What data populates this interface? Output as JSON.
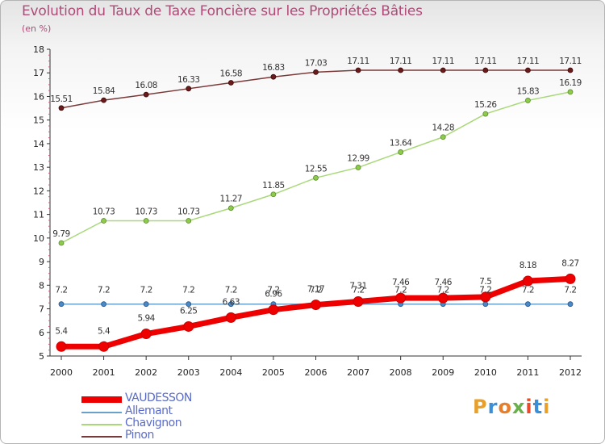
{
  "header": {
    "title": "Evolution du Taux de Taxe Foncière sur les Propriétés Bâties",
    "subtitle": "(en %)"
  },
  "logo": {
    "text": "Proxiti",
    "colors": [
      "#e8a02a",
      "#3a8fd8",
      "#e87e2a",
      "#6ab04c",
      "#e84a2a",
      "#3a8fd8",
      "#e8a02a"
    ]
  },
  "chart_data": {
    "type": "line",
    "x": [
      2000,
      2001,
      2002,
      2003,
      2004,
      2005,
      2006,
      2007,
      2008,
      2009,
      2010,
      2011,
      2012
    ],
    "ylim": [
      5,
      18
    ],
    "yticks": [
      5,
      6,
      7,
      8,
      9,
      10,
      11,
      12,
      13,
      14,
      15,
      16,
      17,
      18
    ],
    "grid": false,
    "legend_position": "bottom-left",
    "series": [
      {
        "name": "VAUDESSON",
        "values": [
          5.4,
          5.4,
          5.94,
          6.25,
          6.63,
          6.96,
          7.17,
          7.31,
          7.46,
          7.46,
          7.5,
          8.18,
          8.27
        ],
        "labels": [
          "5.4",
          "5.4",
          "5.94",
          "6.25",
          "6.63",
          "6.96",
          "7.17",
          "7.31",
          "7.46",
          "7.46",
          "7.5",
          "8.18",
          "8.27"
        ],
        "color": "#ee0000"
      },
      {
        "name": "Allemant",
        "values": [
          7.2,
          7.2,
          7.2,
          7.2,
          7.2,
          7.2,
          7.2,
          7.2,
          7.2,
          7.2,
          7.2,
          7.2,
          7.2
        ],
        "labels": [
          "7.2",
          "7.2",
          "7.2",
          "7.2",
          "7.2",
          "7.2",
          "7.2",
          "7.2",
          "7.2",
          "7.2",
          "7.2",
          "7.2",
          "7.2"
        ],
        "color": "#6aa0cc"
      },
      {
        "name": "Chavignon",
        "values": [
          9.79,
          10.73,
          10.73,
          10.73,
          11.27,
          11.85,
          12.55,
          12.99,
          13.64,
          14.28,
          15.26,
          15.83,
          16.19
        ],
        "labels": [
          "9.79",
          "10.73",
          "10.73",
          "10.73",
          "11.27",
          "11.85",
          "12.55",
          "12.99",
          "13.64",
          "14.28",
          "15.26",
          "15.83",
          "16.19"
        ],
        "color": "#a8d878"
      },
      {
        "name": "Pinon",
        "values": [
          15.51,
          15.84,
          16.08,
          16.33,
          16.58,
          16.83,
          17.03,
          17.11,
          17.11,
          17.11,
          17.11,
          17.11,
          17.11
        ],
        "labels": [
          "15.51",
          "15.84",
          "16.08",
          "16.33",
          "16.58",
          "16.83",
          "17.03",
          "17.11",
          "17.11",
          "17.11",
          "17.11",
          "17.11",
          "17.11"
        ],
        "color": "#7a3a3a"
      }
    ]
  }
}
